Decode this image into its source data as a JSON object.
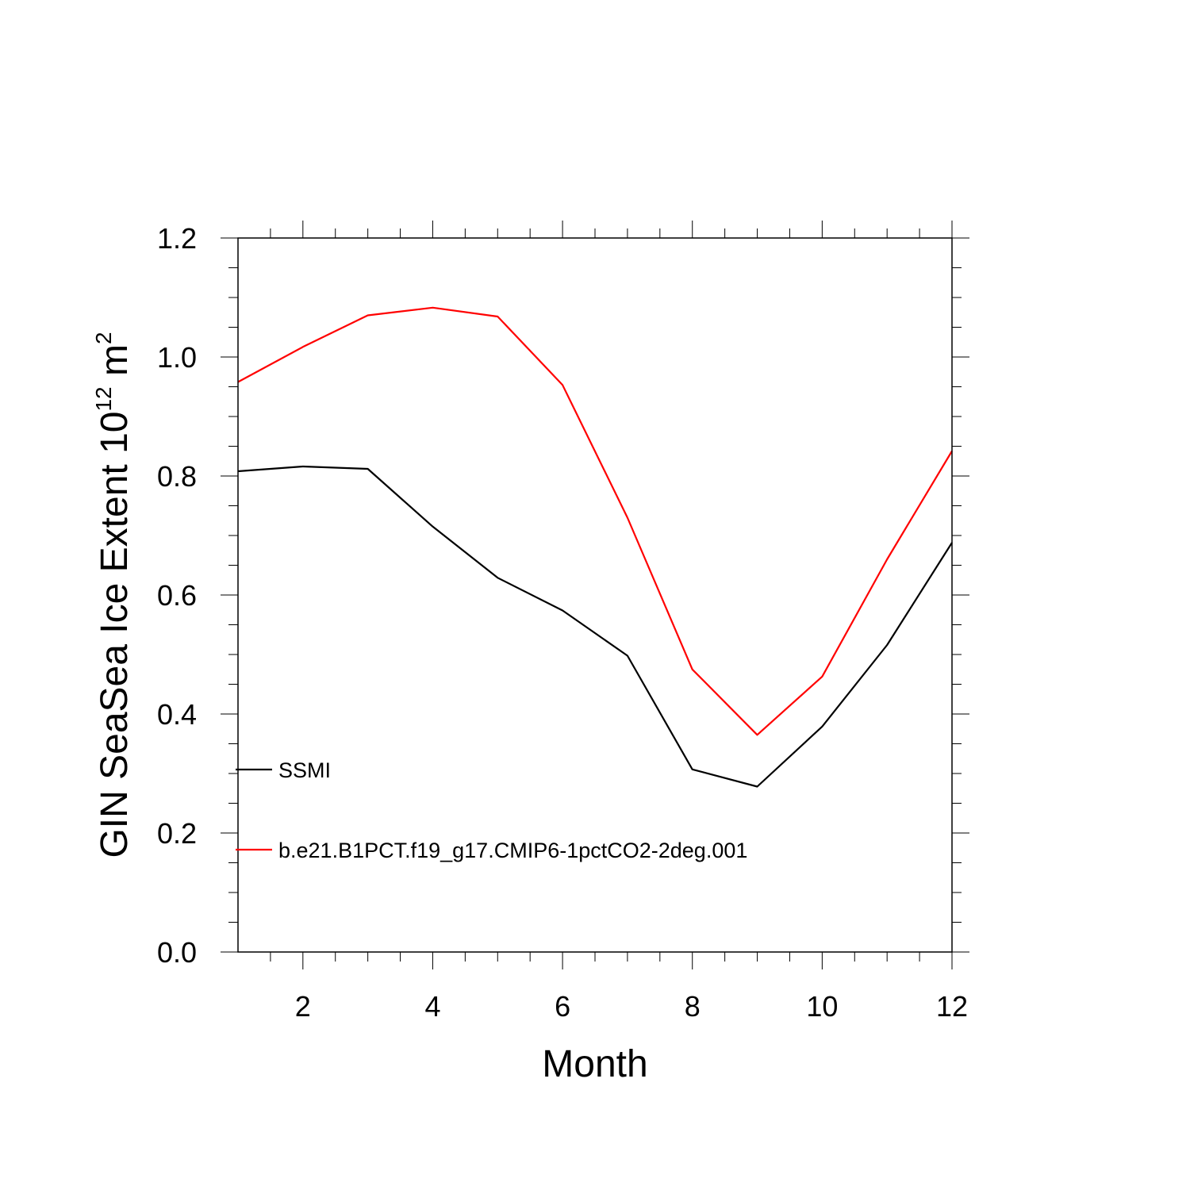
{
  "chart_data": {
    "type": "line",
    "xlabel": "Month",
    "ylabel": {
      "prefix": "GIN SeaSea Ice Extent 10",
      "exponent1": "12",
      "middle": " m",
      "exponent2": "2"
    },
    "xlim": [
      1,
      12
    ],
    "ylim": [
      0.0,
      1.2
    ],
    "xticks": [
      2,
      4,
      6,
      8,
      10,
      12
    ],
    "xtick_labels": [
      "2",
      "4",
      "6",
      "8",
      "10",
      "12"
    ],
    "yticks": [
      0.0,
      0.2,
      0.4,
      0.6,
      0.8,
      1.0,
      1.2
    ],
    "ytick_labels": [
      "0.0",
      "0.2",
      "0.4",
      "0.6",
      "0.8",
      "1.0",
      "1.2"
    ],
    "grid": false,
    "legend_position": "bottom-left",
    "x": [
      1,
      2,
      3,
      4,
      5,
      6,
      7,
      8,
      9,
      10,
      11,
      12
    ],
    "series": [
      {
        "name": "SSMI",
        "color": "#000000",
        "values": [
          0.808,
          0.816,
          0.812,
          0.715,
          0.629,
          0.574,
          0.498,
          0.307,
          0.278,
          0.379,
          0.516,
          0.688
        ]
      },
      {
        "name": "b.e21.B1PCT.f19_g17.CMIP6-1pctCO2-2deg.001",
        "color": "#ff0000",
        "values": [
          0.958,
          1.017,
          1.07,
          1.083,
          1.068,
          0.953,
          0.73,
          0.475,
          0.365,
          0.463,
          0.66,
          0.842
        ]
      }
    ]
  }
}
